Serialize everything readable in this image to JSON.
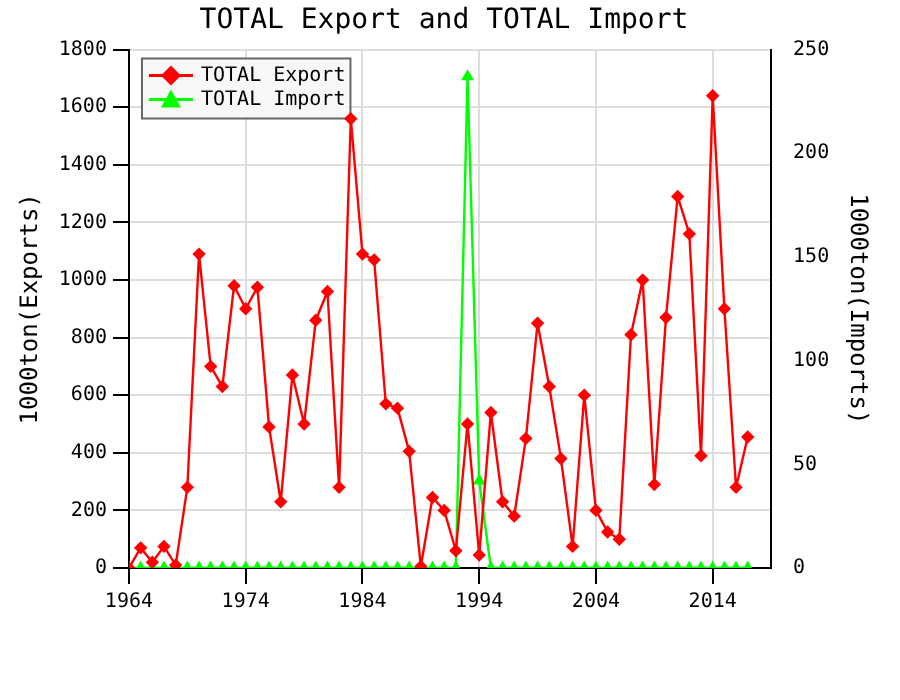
{
  "chart_data": {
    "type": "line",
    "title": "TOTAL Export and TOTAL Import",
    "ylabel": "1000ton(Exports)",
    "y2label": "1000ton(Imports)",
    "x": [
      1964,
      1965,
      1966,
      1967,
      1968,
      1969,
      1970,
      1971,
      1972,
      1973,
      1974,
      1975,
      1976,
      1977,
      1978,
      1979,
      1980,
      1981,
      1982,
      1983,
      1984,
      1985,
      1986,
      1987,
      1988,
      1989,
      1990,
      1991,
      1992,
      1993,
      1994,
      1995,
      1996,
      1997,
      1998,
      1999,
      2000,
      2001,
      2002,
      2003,
      2004,
      2005,
      2006,
      2007,
      2008,
      2009,
      2010,
      2011,
      2012,
      2013,
      2014,
      2015,
      2016,
      2017
    ],
    "series": [
      {
        "name": "TOTAL Export",
        "color": "#ff0000",
        "marker": "diamond",
        "values": [
          0,
          70,
          20,
          75,
          10,
          280,
          1090,
          700,
          630,
          980,
          900,
          975,
          490,
          230,
          670,
          500,
          860,
          960,
          280,
          1560,
          1090,
          1070,
          570,
          555,
          405,
          5,
          245,
          200,
          60,
          500,
          45,
          540,
          230,
          180,
          450,
          850,
          630,
          380,
          75,
          600,
          200,
          125,
          100,
          810,
          1000,
          290,
          870,
          1290,
          1160,
          390,
          1640,
          900,
          280,
          455
        ]
      },
      {
        "name": "TOTAL Import",
        "color": "#00ff00",
        "marker": "triangle",
        "axis": "y2",
        "values": [
          0,
          0,
          0,
          0,
          0,
          0,
          0,
          0,
          0,
          0,
          0,
          0,
          0,
          0,
          0,
          0,
          0,
          0,
          0,
          0,
          0,
          0,
          0,
          0,
          0,
          0,
          0,
          0,
          0,
          237,
          42,
          0,
          0,
          0,
          0,
          0,
          0,
          0,
          0,
          0,
          0,
          0,
          0,
          0,
          0,
          0,
          0,
          0,
          0,
          0,
          0,
          0,
          0,
          0
        ]
      }
    ],
    "xlim": [
      1964,
      2019
    ],
    "xticks": [
      1964,
      1974,
      1984,
      1994,
      2004,
      2014
    ],
    "ylim": [
      0,
      1800
    ],
    "yticks": [
      0,
      200,
      400,
      600,
      800,
      1000,
      1200,
      1400,
      1600,
      1800
    ],
    "y2lim": [
      0,
      250
    ],
    "y2ticks": [
      0,
      50,
      100,
      150,
      200,
      250
    ],
    "grid": true,
    "legend": "top left"
  }
}
